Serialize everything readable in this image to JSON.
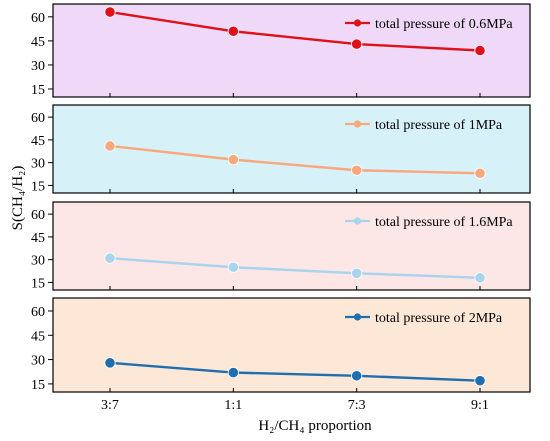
{
  "chart_data": {
    "type": "line",
    "shared_x": {
      "categories": [
        "3:7",
        "1:1",
        "7:3",
        "9:1"
      ],
      "label": "H₂/CH₄ proportion"
    },
    "shared_y_label": "S(CH₄/H₂)",
    "panels": [
      {
        "name": "total pressure of 0.6MPa",
        "values": [
          63,
          51,
          43,
          39
        ],
        "ylim": [
          10,
          68
        ],
        "yticks": [
          "15",
          "30",
          "45",
          "60"
        ],
        "background": "#f0d9f8",
        "color": "#e0101a"
      },
      {
        "name": "total pressure of 1MPa",
        "values": [
          41,
          32,
          25,
          23
        ],
        "ylim": [
          10,
          68
        ],
        "yticks": [
          "15",
          "30",
          "45",
          "60"
        ],
        "background": "#d7f1f8",
        "color": "#f7a87c"
      },
      {
        "name": "total pressure of 1.6MPa",
        "values": [
          31,
          25,
          21,
          18
        ],
        "ylim": [
          10,
          68
        ],
        "yticks": [
          "15",
          "30",
          "45",
          "60"
        ],
        "background": "#fce6e6",
        "color": "#a8d4ee"
      },
      {
        "name": "total pressure of 2MPa",
        "values": [
          28,
          22,
          20,
          17
        ],
        "ylim": [
          10,
          68
        ],
        "yticks": [
          "15",
          "30",
          "45",
          "60"
        ],
        "background": "#fde8d7",
        "color": "#1f6fb0"
      }
    ],
    "grid": false,
    "legend_position": "top-right"
  }
}
